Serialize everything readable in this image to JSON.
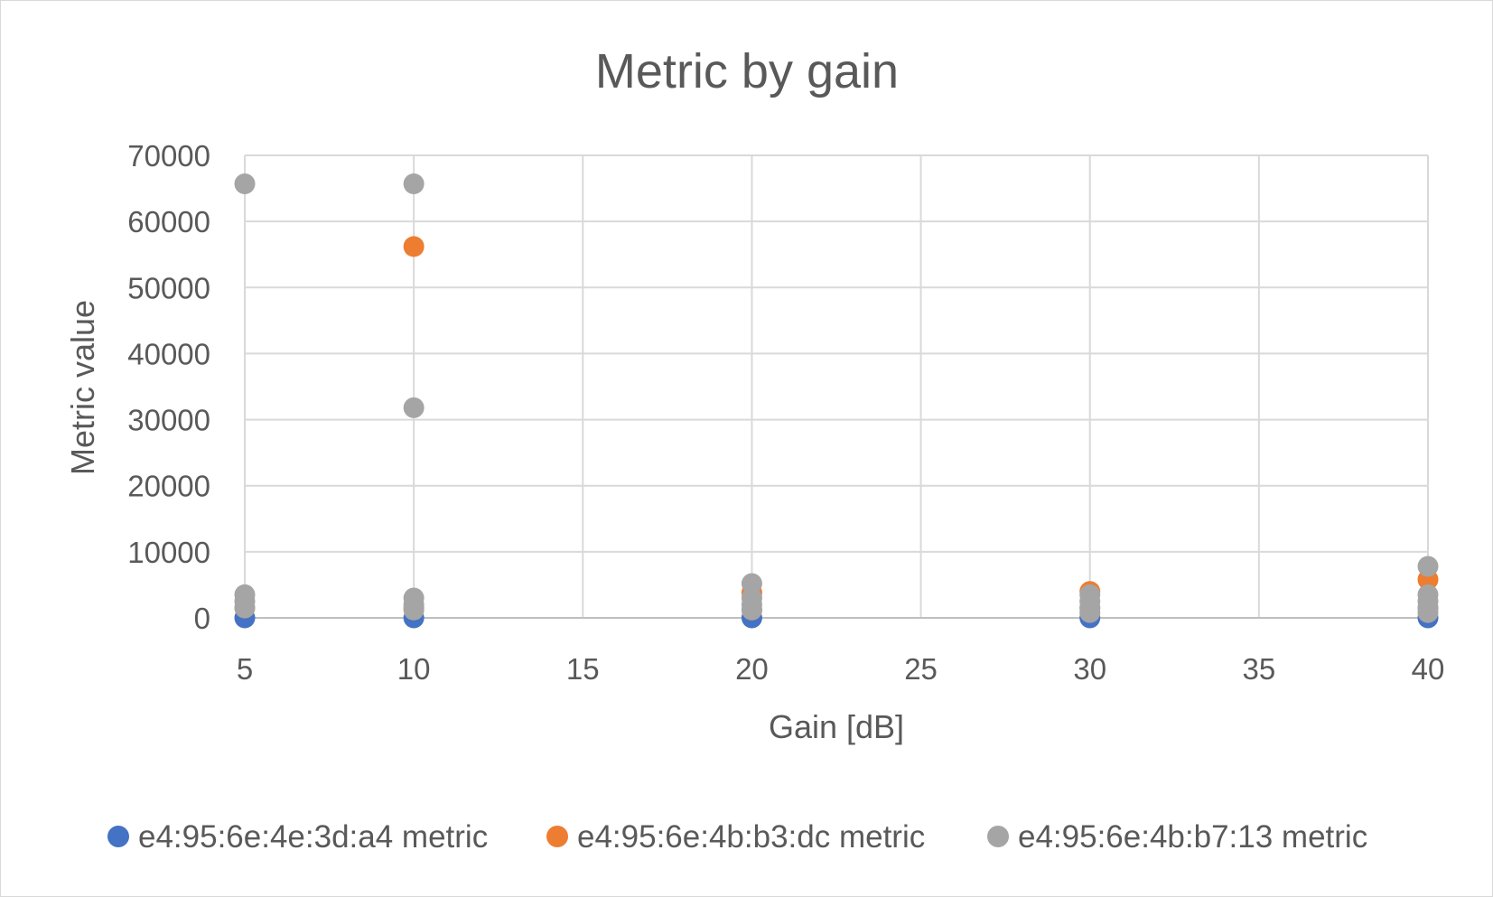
{
  "chart_data": {
    "type": "scatter",
    "title": "Metric by gain",
    "xlabel": "Gain [dB]",
    "ylabel": "Metric value",
    "xlim": [
      5,
      40
    ],
    "ylim": [
      0,
      70000
    ],
    "xticks": [
      5,
      10,
      15,
      20,
      25,
      30,
      35,
      40
    ],
    "yticks": [
      0,
      10000,
      20000,
      30000,
      40000,
      50000,
      60000,
      70000
    ],
    "grid": true,
    "legend_position": "bottom",
    "series": [
      {
        "name": "e4:95:6e:4e:3d:a4 metric",
        "color": "#4472c4",
        "points": [
          {
            "x": 5,
            "y": 0
          },
          {
            "x": 10,
            "y": 0
          },
          {
            "x": 20,
            "y": 0
          },
          {
            "x": 30,
            "y": 0
          },
          {
            "x": 40,
            "y": 0
          }
        ]
      },
      {
        "name": "e4:95:6e:4b:b3:dc metric",
        "color": "#ed7d31",
        "points": [
          {
            "x": 5,
            "y": 1500
          },
          {
            "x": 10,
            "y": 56200
          },
          {
            "x": 10,
            "y": 1500
          },
          {
            "x": 20,
            "y": 3800
          },
          {
            "x": 20,
            "y": 1200
          },
          {
            "x": 30,
            "y": 4000
          },
          {
            "x": 30,
            "y": 1500
          },
          {
            "x": 40,
            "y": 5800
          },
          {
            "x": 40,
            "y": 1500
          }
        ]
      },
      {
        "name": "e4:95:6e:4b:b7:13 metric",
        "color": "#a5a5a5",
        "points": [
          {
            "x": 5,
            "y": 65700
          },
          {
            "x": 5,
            "y": 3500
          },
          {
            "x": 5,
            "y": 2500
          },
          {
            "x": 5,
            "y": 1500
          },
          {
            "x": 10,
            "y": 65700
          },
          {
            "x": 10,
            "y": 31800
          },
          {
            "x": 10,
            "y": 3000
          },
          {
            "x": 10,
            "y": 2000
          },
          {
            "x": 10,
            "y": 1200
          },
          {
            "x": 20,
            "y": 5200
          },
          {
            "x": 20,
            "y": 3000
          },
          {
            "x": 20,
            "y": 2000
          },
          {
            "x": 20,
            "y": 1200
          },
          {
            "x": 30,
            "y": 3500
          },
          {
            "x": 30,
            "y": 2500
          },
          {
            "x": 30,
            "y": 1500
          },
          {
            "x": 30,
            "y": 800
          },
          {
            "x": 40,
            "y": 7800
          },
          {
            "x": 40,
            "y": 3500
          },
          {
            "x": 40,
            "y": 2500
          },
          {
            "x": 40,
            "y": 1500
          },
          {
            "x": 40,
            "y": 800
          }
        ]
      }
    ]
  }
}
